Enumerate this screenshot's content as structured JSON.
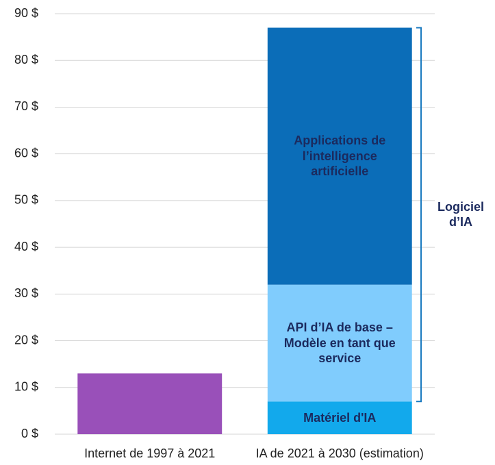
{
  "chart_data": {
    "type": "stacked_bar",
    "categories": [
      "Internet de 1997 à 2021",
      "IA de 2021 à 2030 (estimation)"
    ],
    "series": [
      {
        "color": "#9950b9",
        "values": [
          13,
          null
        ]
      },
      {
        "name": "Matériel d'IA",
        "color": "#12a9ec",
        "values": [
          null,
          7
        ]
      },
      {
        "name": "API d’IA de base – Modèle en tant que service",
        "color": "#80ccfd",
        "values": [
          null,
          25
        ]
      },
      {
        "name": "Applications de l’intelligence artificielle",
        "color": "#0b6db8",
        "values": [
          null,
          55
        ]
      }
    ],
    "ylim": [
      0,
      90
    ],
    "yticks": [
      {
        "value": 0,
        "label": "0 $"
      },
      {
        "value": 10,
        "label": "10 $"
      },
      {
        "value": 20,
        "label": "20 $"
      },
      {
        "value": 30,
        "label": "30 $"
      },
      {
        "value": 40,
        "label": "40 $"
      },
      {
        "value": 50,
        "label": "50 $"
      },
      {
        "value": 60,
        "label": "60 $"
      },
      {
        "value": 70,
        "label": "70 $"
      },
      {
        "value": 80,
        "label": "80 $"
      },
      {
        "value": 90,
        "label": "90 $"
      }
    ],
    "grid": true,
    "annotation": {
      "text": "Logiciel d’IA",
      "series": [
        2,
        3
      ]
    }
  }
}
